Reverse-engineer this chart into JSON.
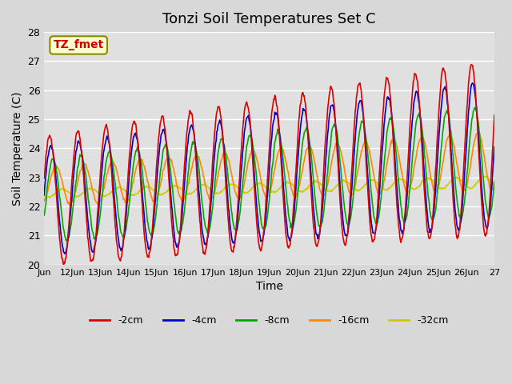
{
  "title": "Tonzi Soil Temperatures Set C",
  "xlabel": "Time",
  "ylabel": "Soil Temperature (C)",
  "ylim": [
    20.0,
    28.0
  ],
  "yticks": [
    20.0,
    21.0,
    22.0,
    23.0,
    24.0,
    25.0,
    26.0,
    27.0,
    28.0
  ],
  "colors": {
    "-2cm": "#dd0000",
    "-4cm": "#0000cc",
    "-8cm": "#00aa00",
    "-16cm": "#ff8800",
    "-32cm": "#cccc00"
  },
  "legend_label": "TZ_fmet",
  "legend_bg": "#ffffcc",
  "legend_border": "#888800",
  "fig_bg": "#d8d8d8",
  "plot_bg": "#e0e0e0",
  "grid_color": "#ffffff",
  "xtick_labels": [
    "Jun",
    "12Jun",
    "13Jun",
    "14Jun",
    "15Jun",
    "16Jun",
    "17Jun",
    "18Jun",
    "19Jun",
    "20Jun",
    "21Jun",
    "22Jun",
    "23Jun",
    "24Jun",
    "25Jun",
    "26Jun",
    "27"
  ],
  "n_days": 16,
  "samples_per_day": 48
}
